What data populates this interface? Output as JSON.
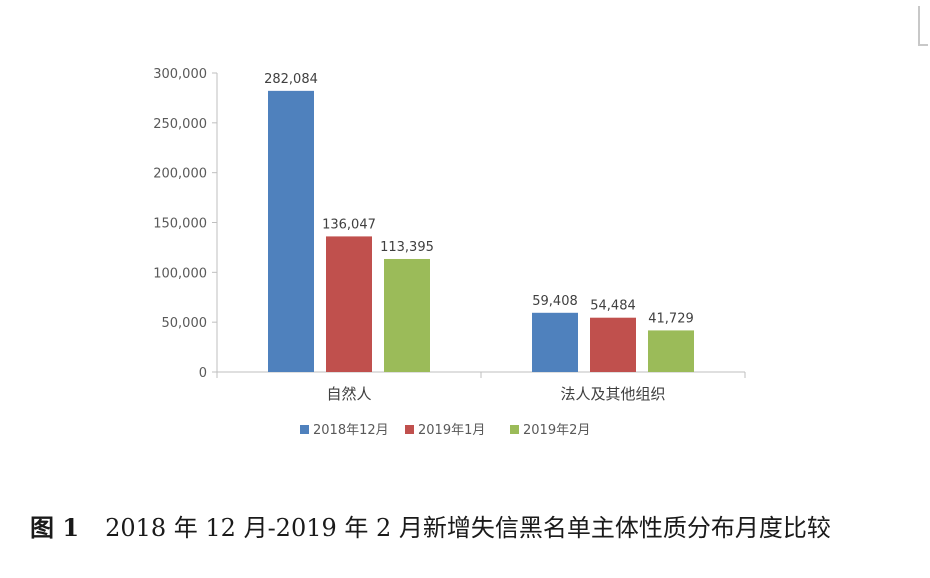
{
  "chart_data": {
    "type": "bar",
    "title": "",
    "xlabel": "",
    "ylabel": "",
    "categories": [
      "自然人",
      "法人及其他组织"
    ],
    "series": [
      {
        "name": "2018年12月",
        "values": [
          282084,
          59408
        ],
        "color": "#4f81bd",
        "labels": [
          "282,084",
          "59,408"
        ]
      },
      {
        "name": "2019年1月",
        "values": [
          136047,
          54484
        ],
        "color": "#c0504d",
        "labels": [
          "136,047",
          "54,484"
        ]
      },
      {
        "name": "2019年2月",
        "values": [
          113395,
          41729
        ],
        "color": "#9bbb59",
        "labels": [
          "113,395",
          "41,729"
        ]
      }
    ],
    "ylim": [
      0,
      300000
    ],
    "yticks": [
      0,
      50000,
      100000,
      150000,
      200000,
      250000,
      300000
    ],
    "ytick_labels": [
      "0",
      "50,000",
      "100,000",
      "150,000",
      "200,000",
      "250,000",
      "300,000"
    ],
    "grid": false,
    "legend_position": "bottom"
  },
  "caption": {
    "figure_number": "图 1",
    "text": "2018 年 12 月-2019 年 2 月新增失信黑名单主体性质分布月度比较"
  }
}
